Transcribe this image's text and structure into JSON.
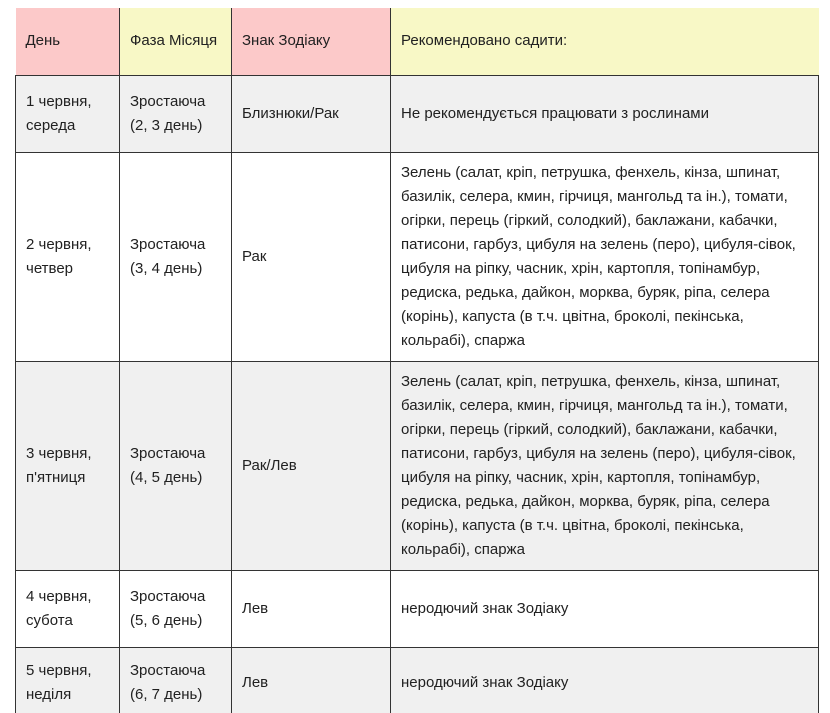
{
  "colors": {
    "header_pink": "#fcc9c9",
    "header_yellow": "#f8f8c6",
    "row_gray": "#f0f0f0",
    "row_white": "#ffffff",
    "border": "#333333",
    "text": "#212121"
  },
  "table": {
    "columns": [
      {
        "label": "День",
        "tone": "pink"
      },
      {
        "label": "Фаза Місяця",
        "tone": "yellow"
      },
      {
        "label": "Знак Зодіаку",
        "tone": "pink"
      },
      {
        "label": "Рекомендовано садити:",
        "tone": "yellow"
      }
    ],
    "rows": [
      {
        "day": "1 червня, середа",
        "moon_phase": "Зростаюча (2, 3 день)",
        "zodiac": "Близнюки/Рак",
        "recommendation": "Не рекомендується працювати з рослинами"
      },
      {
        "day": "2 червня, четвер",
        "moon_phase": "Зростаюча (3, 4 день)",
        "zodiac": "Рак",
        "recommendation": "Зелень (салат, кріп, петрушка, фенхель, кінза, шпинат, базилік, селера, кмин, гірчиця, мангольд та ін.), томати, огірки, перець (гіркий, солодкий), баклажани, кабачки, патисони, гарбуз, цибуля на зелень (перо), цибуля-сівок, цибуля на ріпку, часник, хрін, картопля, топінамбур, редиска, редька, дайкон, морква, буряк, ріпа, селера (корінь), капуста (в т.ч. цвітна, броколі, пекінська, кольрабі), спаржа"
      },
      {
        "day": "3 червня, п'ятниця",
        "moon_phase": "Зростаюча (4, 5 день)",
        "zodiac": "Рак/Лев",
        "recommendation": "Зелень (салат, кріп, петрушка, фенхель, кінза, шпинат, базилік, селера, кмин, гірчиця, мангольд та ін.), томати, огірки, перець (гіркий, солодкий), баклажани, кабачки, патисони, гарбуз, цибуля на зелень (перо), цибуля-сівок, цибуля на ріпку, часник, хрін, картопля, топінамбур, редиска, редька, дайкон, морква, буряк, ріпа, селера (корінь), капуста (в т.ч. цвітна, броколі, пекінська, кольрабі), спаржа"
      },
      {
        "day": "4 червня, субота",
        "moon_phase": "Зростаюча (5, 6 день)",
        "zodiac": "Лев",
        "recommendation": "неродючий знак Зодіаку"
      },
      {
        "day": "5 червня, неділя",
        "moon_phase": "Зростаюча (6, 7 день)",
        "zodiac": "Лев",
        "recommendation": "неродючий знак Зодіаку"
      }
    ]
  }
}
